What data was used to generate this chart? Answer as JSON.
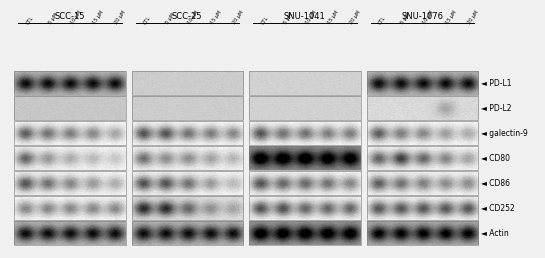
{
  "cell_lines": [
    "SCC-15",
    "SCC-25",
    "SNU-1041",
    "SNU-1076"
  ],
  "treatments": [
    "CTL",
    "5 μM",
    "10 μM",
    "15 μM",
    "20 μM"
  ],
  "markers": [
    "PD-L1",
    "PD-L2",
    "galectin-9",
    "CD80",
    "CD86",
    "CD252",
    "Actin"
  ],
  "figure_bg": "#f0f0f0",
  "right_labels": [
    "PD-L1",
    "PD-L2",
    "galectin-9",
    "CD80",
    "CD86",
    "CD252",
    "Actin"
  ],
  "panel_configs": {
    "SCC-15": {
      "PD-L1": {
        "bg": 0.72,
        "bands": [
          0.85,
          0.85,
          0.85,
          0.85,
          0.85
        ]
      },
      "PD-L2": {
        "bg": 0.78,
        "bands": []
      },
      "galectin-9": {
        "bg": 0.97,
        "bands": [
          0.75,
          0.65,
          0.6,
          0.55,
          0.4
        ]
      },
      "CD80": {
        "bg": 0.95,
        "bands": [
          0.7,
          0.45,
          0.35,
          0.28,
          0.22
        ]
      },
      "CD86": {
        "bg": 0.96,
        "bands": [
          0.8,
          0.65,
          0.55,
          0.45,
          0.35
        ]
      },
      "CD252": {
        "bg": 0.97,
        "bands": [
          0.55,
          0.55,
          0.55,
          0.55,
          0.55
        ]
      },
      "Actin": {
        "bg": 0.72,
        "bands": [
          0.85,
          0.85,
          0.85,
          0.85,
          0.85
        ]
      }
    },
    "SCC-25": {
      "PD-L1": {
        "bg": 0.8,
        "bands": []
      },
      "PD-L2": {
        "bg": 0.8,
        "bands": []
      },
      "galectin-9": {
        "bg": 0.97,
        "bands": [
          0.8,
          0.8,
          0.65,
          0.6,
          0.55
        ]
      },
      "CD80": {
        "bg": 0.95,
        "bands": [
          0.65,
          0.5,
          0.5,
          0.4,
          0.3
        ]
      },
      "CD86": {
        "bg": 0.96,
        "bands": [
          0.8,
          0.8,
          0.65,
          0.45,
          0.3
        ]
      },
      "CD252": {
        "bg": 0.88,
        "bands": [
          0.9,
          0.9,
          0.6,
          0.4,
          0.3
        ]
      },
      "Actin": {
        "bg": 0.72,
        "bands": [
          0.85,
          0.85,
          0.85,
          0.85,
          0.85
        ]
      }
    },
    "SNU-1041": {
      "PD-L1": {
        "bg": 0.82,
        "bands": []
      },
      "PD-L2": {
        "bg": 0.82,
        "bands": []
      },
      "galectin-9": {
        "bg": 0.97,
        "bands": [
          0.8,
          0.65,
          0.65,
          0.6,
          0.6
        ]
      },
      "CD80": {
        "bg": 0.55,
        "bands": [
          0.9,
          0.9,
          0.9,
          0.85,
          0.85
        ]
      },
      "CD86": {
        "bg": 0.96,
        "bands": [
          0.8,
          0.7,
          0.7,
          0.65,
          0.55
        ]
      },
      "CD252": {
        "bg": 0.96,
        "bands": [
          0.8,
          0.8,
          0.7,
          0.7,
          0.7
        ]
      },
      "Actin": {
        "bg": 0.6,
        "bands": [
          0.9,
          0.9,
          0.9,
          0.9,
          0.9
        ]
      }
    },
    "SNU-1076": {
      "PD-L1": {
        "bg": 0.72,
        "bands": [
          0.85,
          0.85,
          0.85,
          0.85,
          0.85
        ]
      },
      "PD-L2": {
        "bg": 0.85,
        "bands": [
          0.0,
          0.0,
          0.0,
          0.25,
          0.0
        ]
      },
      "galectin-9": {
        "bg": 0.97,
        "bands": [
          0.75,
          0.6,
          0.55,
          0.45,
          0.38
        ]
      },
      "CD80": {
        "bg": 0.96,
        "bands": [
          0.72,
          0.9,
          0.7,
          0.55,
          0.4
        ]
      },
      "CD86": {
        "bg": 0.96,
        "bands": [
          0.75,
          0.65,
          0.58,
          0.52,
          0.52
        ]
      },
      "CD252": {
        "bg": 0.96,
        "bands": [
          0.78,
          0.78,
          0.78,
          0.78,
          0.78
        ]
      },
      "Actin": {
        "bg": 0.68,
        "bands": [
          0.88,
          0.88,
          0.88,
          0.88,
          0.88
        ]
      }
    }
  }
}
